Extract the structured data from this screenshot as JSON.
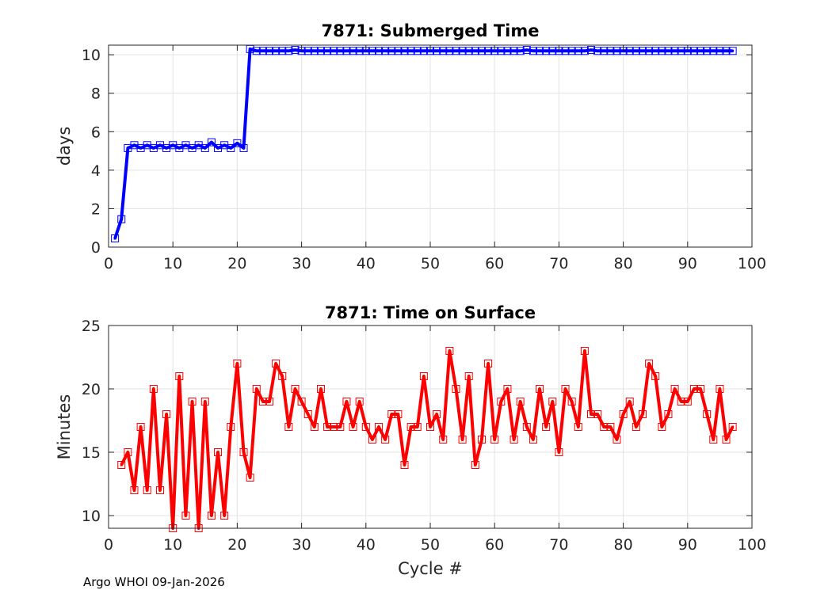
{
  "footer_text": "Argo WHOI 09-Jan-2026",
  "chart_data": [
    {
      "type": "line",
      "title": "7871: Submerged Time",
      "xlabel": "",
      "ylabel": "days",
      "xlim": [
        0,
        100
      ],
      "ylim": [
        0,
        10.5
      ],
      "xticks": [
        0,
        10,
        20,
        30,
        40,
        50,
        60,
        70,
        80,
        90,
        100
      ],
      "yticks": [
        0,
        2,
        4,
        6,
        8,
        10
      ],
      "grid": true,
      "color": "#0000ff",
      "marker": "square",
      "series": [
        {
          "name": "Submerged Time",
          "x": [
            1,
            2,
            3,
            4,
            5,
            6,
            7,
            8,
            9,
            10,
            11,
            12,
            13,
            14,
            15,
            16,
            17,
            18,
            19,
            20,
            21,
            22,
            23,
            24,
            25,
            26,
            27,
            28,
            29,
            30,
            31,
            32,
            33,
            34,
            35,
            36,
            37,
            38,
            39,
            40,
            41,
            42,
            43,
            44,
            45,
            46,
            47,
            48,
            49,
            50,
            51,
            52,
            53,
            54,
            55,
            56,
            57,
            58,
            59,
            60,
            61,
            62,
            63,
            64,
            65,
            66,
            67,
            68,
            69,
            70,
            71,
            72,
            73,
            74,
            75,
            76,
            77,
            78,
            79,
            80,
            81,
            82,
            83,
            84,
            85,
            86,
            87,
            88,
            89,
            90,
            91,
            92,
            93,
            94,
            95,
            96,
            97
          ],
          "values": [
            0.45,
            1.45,
            5.15,
            5.3,
            5.15,
            5.3,
            5.15,
            5.3,
            5.15,
            5.3,
            5.15,
            5.3,
            5.15,
            5.3,
            5.15,
            5.45,
            5.15,
            5.3,
            5.15,
            5.4,
            5.15,
            10.3,
            10.2,
            10.2,
            10.2,
            10.2,
            10.2,
            10.2,
            10.25,
            10.2,
            10.2,
            10.2,
            10.2,
            10.2,
            10.2,
            10.2,
            10.2,
            10.2,
            10.2,
            10.2,
            10.2,
            10.2,
            10.2,
            10.2,
            10.2,
            10.2,
            10.2,
            10.2,
            10.2,
            10.2,
            10.2,
            10.2,
            10.2,
            10.2,
            10.2,
            10.2,
            10.2,
            10.2,
            10.2,
            10.2,
            10.2,
            10.2,
            10.2,
            10.2,
            10.25,
            10.2,
            10.2,
            10.2,
            10.2,
            10.2,
            10.2,
            10.2,
            10.2,
            10.2,
            10.25,
            10.2,
            10.2,
            10.2,
            10.2,
            10.2,
            10.2,
            10.2,
            10.2,
            10.2,
            10.2,
            10.2,
            10.2,
            10.2,
            10.2,
            10.2,
            10.2,
            10.2,
            10.2,
            10.2,
            10.2,
            10.2,
            10.2
          ]
        }
      ]
    },
    {
      "type": "line",
      "title": "7871: Time on Surface",
      "xlabel": "Cycle #",
      "ylabel": "Minutes",
      "xlim": [
        0,
        100
      ],
      "ylim": [
        9,
        25
      ],
      "xticks": [
        0,
        10,
        20,
        30,
        40,
        50,
        60,
        70,
        80,
        90,
        100
      ],
      "yticks": [
        10,
        15,
        20,
        25
      ],
      "grid": true,
      "color": "#ff0000",
      "marker": "square",
      "series": [
        {
          "name": "Time on Surface",
          "x": [
            2,
            3,
            4,
            5,
            6,
            7,
            8,
            9,
            10,
            11,
            12,
            13,
            14,
            15,
            16,
            17,
            18,
            19,
            20,
            21,
            22,
            23,
            24,
            25,
            26,
            27,
            28,
            29,
            30,
            31,
            32,
            33,
            34,
            35,
            36,
            37,
            38,
            39,
            40,
            41,
            42,
            43,
            44,
            45,
            46,
            47,
            48,
            49,
            50,
            51,
            52,
            53,
            54,
            55,
            56,
            57,
            58,
            59,
            60,
            61,
            62,
            63,
            64,
            65,
            66,
            67,
            68,
            69,
            70,
            71,
            72,
            73,
            74,
            75,
            76,
            77,
            78,
            79,
            80,
            81,
            82,
            83,
            84,
            85,
            86,
            87,
            88,
            89,
            90,
            91,
            92,
            93,
            94,
            95,
            96,
            97
          ],
          "values": [
            14,
            15,
            12,
            17,
            12,
            20,
            12,
            18,
            9,
            21,
            10,
            19,
            9,
            19,
            10,
            15,
            10,
            17,
            22,
            15,
            13,
            20,
            19,
            19,
            22,
            21,
            17,
            20,
            19,
            18,
            17,
            20,
            17,
            17,
            17,
            19,
            17,
            19,
            17,
            16,
            17,
            16,
            18,
            18,
            14,
            17,
            17,
            21,
            17,
            18,
            16,
            23,
            20,
            16,
            21,
            14,
            16,
            22,
            16,
            19,
            20,
            16,
            19,
            17,
            16,
            20,
            17,
            19,
            15,
            20,
            19,
            17,
            23,
            18,
            18,
            17,
            17,
            16,
            18,
            19,
            17,
            18,
            22,
            21,
            17,
            18,
            20,
            19,
            19,
            20,
            20,
            18,
            16,
            20,
            16,
            17
          ]
        }
      ]
    }
  ]
}
